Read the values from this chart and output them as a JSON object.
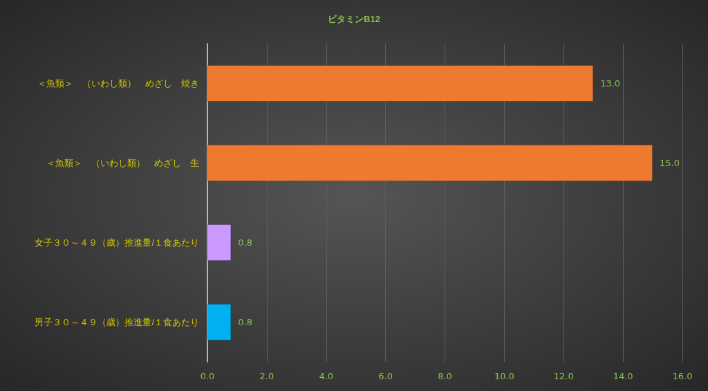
{
  "chart_data": {
    "type": "bar",
    "orientation": "horizontal",
    "title": "ビタミンB12",
    "categories": [
      "＜魚類＞　（いわし類）　めざし　焼き",
      "＜魚類＞　（いわし類）　めざし　生",
      "女子３０～４９（歳）推進量/１食あたり",
      "男子３０～４９（歳）推進量/１食あたり"
    ],
    "values": [
      13.0,
      15.0,
      0.8,
      0.8
    ],
    "colors": [
      "#ee7a30",
      "#ee7a30",
      "#cc99ff",
      "#00b0f0"
    ],
    "value_labels": [
      "13.0",
      "15.0",
      "0.8",
      "0.8"
    ],
    "xlim": [
      0,
      16
    ],
    "xticks": [
      {
        "value": 0,
        "label": "0.0"
      },
      {
        "value": 2,
        "label": "2.0"
      },
      {
        "value": 4,
        "label": "4.0"
      },
      {
        "value": 6,
        "label": "6.0"
      },
      {
        "value": 8,
        "label": "8.0"
      },
      {
        "value": 10,
        "label": "10.0"
      },
      {
        "value": 12,
        "label": "12.0"
      },
      {
        "value": 14,
        "label": "14.0"
      },
      {
        "value": 16,
        "label": "16.0"
      }
    ],
    "grid": "x"
  }
}
